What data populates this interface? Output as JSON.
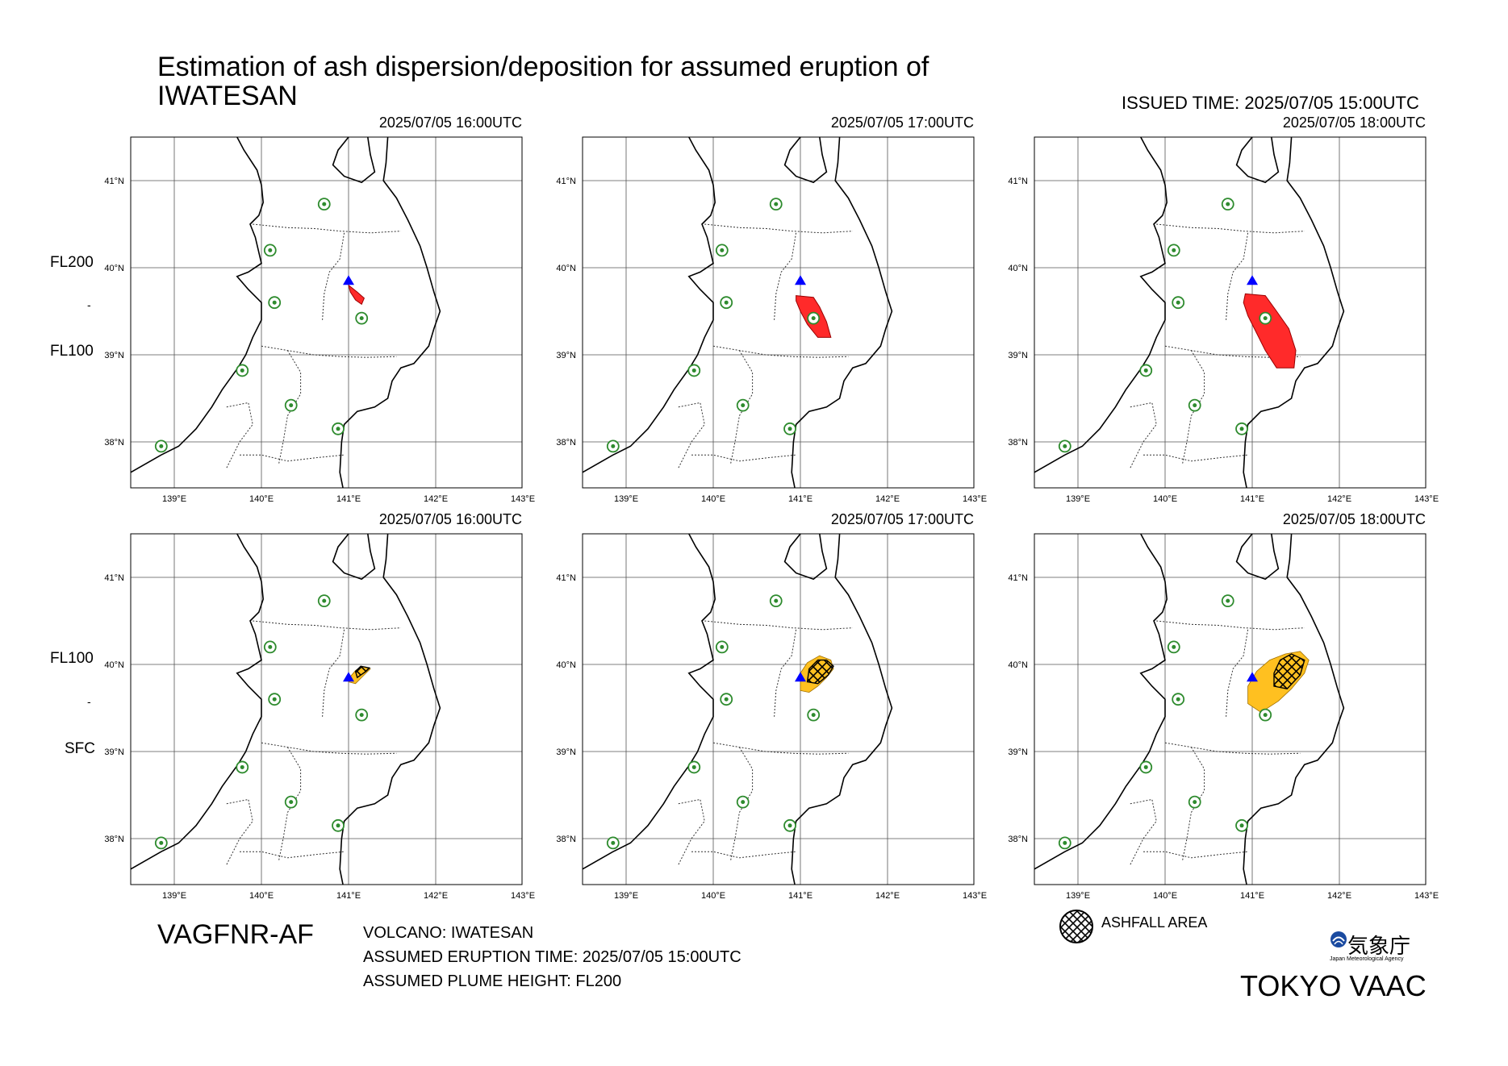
{
  "title_line1": "Estimation of ash dispersion/deposition for assumed eruption of",
  "title_line2": "IWATESAN",
  "issued_time": "ISSUED TIME: 2025/07/05 15:00UTC",
  "rows": [
    {
      "label_top": "FL200",
      "label_mid": "-",
      "label_bottom": "FL100"
    },
    {
      "label_top": "FL100",
      "label_mid": "-",
      "label_bottom": "SFC"
    }
  ],
  "panels": [
    {
      "time": "2025/07/05 16:00UTC"
    },
    {
      "time": "2025/07/05 17:00UTC"
    },
    {
      "time": "2025/07/05 18:00UTC"
    },
    {
      "time": "2025/07/05 16:00UTC"
    },
    {
      "time": "2025/07/05 17:00UTC"
    },
    {
      "time": "2025/07/05 18:00UTC"
    }
  ],
  "axes": {
    "lon_labels": [
      "139°E",
      "140°E",
      "141°E",
      "142°E",
      "143°E"
    ],
    "lat_labels": [
      "41°N",
      "40°N",
      "39°N",
      "38°N"
    ]
  },
  "colors": {
    "upper_ash": "#ff2a2a",
    "lower_ash": "#ffc020",
    "volcano_marker": "#0000ff",
    "city_marker": "#2e8b2e"
  },
  "product_code": "VAGFNR-AF",
  "volcano": "VOLCANO: IWATESAN",
  "eruption_time": "ASSUMED ERUPTION TIME: 2025/07/05 15:00UTC",
  "plume_height": "ASSUMED PLUME HEIGHT: FL200",
  "legend": {
    "ashfall_label": "ASHFALL AREA",
    "icon": "crosshatch-circle-icon"
  },
  "agency": {
    "name_jp": "気象庁",
    "name_en": "Japan Meteorological Agency",
    "logo": "jma-logo-icon"
  },
  "vaac": "TOKYO VAAC"
}
